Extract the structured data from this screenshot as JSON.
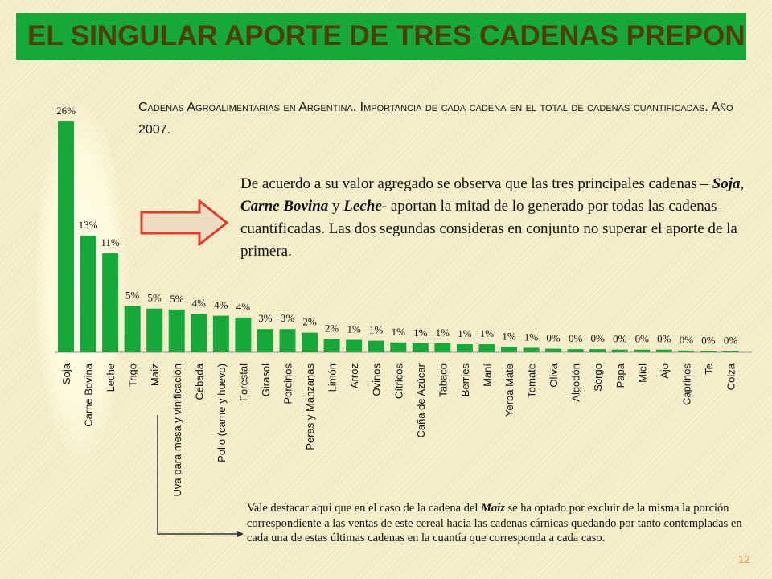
{
  "slide": {
    "title": "El singular aporte de tres cadenas preponderantes …",
    "page_number": "12"
  },
  "chart_title": "Cadenas Agroalimentarias en Argentina. Importancia de cada cadena en el total de cadenas cuantificadas. Año 2007.",
  "main_text": {
    "part1": "De acuerdo a su valor agregado se observa que las tres principales cadenas – ",
    "soja": "Soja",
    "sep1": ", ",
    "carne": "Carne Bovina",
    "and": " y ",
    "leche": "Leche",
    "part2": "- aportan la mitad de lo generado por todas las cadenas cuantificadas. Las dos segundas consideras en conjunto no superar el aporte de la primera."
  },
  "note": {
    "part1": "Vale destacar aquí que en el caso de la cadena del ",
    "maiz": "Maíz",
    "part2": " se ha optado por excluir de la misma la porción correspondiente a las ventas de este cereal hacia las cadenas cárnicas quedando por tanto contempladas en cada una de estas últimas cadenas en la cuantía que corresponda a cada caso."
  },
  "chart_data": {
    "type": "bar",
    "bar_color": "#17a83a",
    "categories": [
      "Soja",
      "Carne Bovina",
      "Leche",
      "Trigo",
      "Maíz",
      "Uva para mesa y vinificación",
      "Cebada",
      "Pollo (carne y huevo)",
      "Forestal",
      "Girasol",
      "Porcinos",
      "Peras y Manzanas",
      "Limón",
      "Arroz",
      "Ovinos",
      "Cítricos",
      "Caña de Azúcar",
      "Tabaco",
      "Berries",
      "Maní",
      "Yerba Mate",
      "Tomate",
      "Oliva",
      "Algodón",
      "Sorgo",
      "Papa",
      "Miel",
      "Ajo",
      "Caprinos",
      "Te",
      "Colza"
    ],
    "values": [
      25.9,
      13.1,
      11.1,
      5.2,
      4.9,
      4.8,
      4.3,
      4.1,
      3.9,
      2.6,
      2.6,
      2.2,
      1.5,
      1.4,
      1.3,
      1.1,
      1.0,
      1.0,
      0.9,
      0.9,
      0.6,
      0.5,
      0.4,
      0.35,
      0.35,
      0.3,
      0.3,
      0.3,
      0.2,
      0.15,
      0.1
    ],
    "data_labels": [
      "26%",
      "13%",
      "11%",
      "5%",
      "5%",
      "5%",
      "4%",
      "4%",
      "4%",
      "3%",
      "3%",
      "2%",
      "2%",
      "1%",
      "1%",
      "1%",
      "1%",
      "1%",
      "1%",
      "1%",
      "1%",
      "1%",
      "0%",
      "0%",
      "0%",
      "0%",
      "0%",
      "0%",
      "0%",
      "0%",
      "0%"
    ],
    "ylim": [
      0,
      26
    ]
  }
}
